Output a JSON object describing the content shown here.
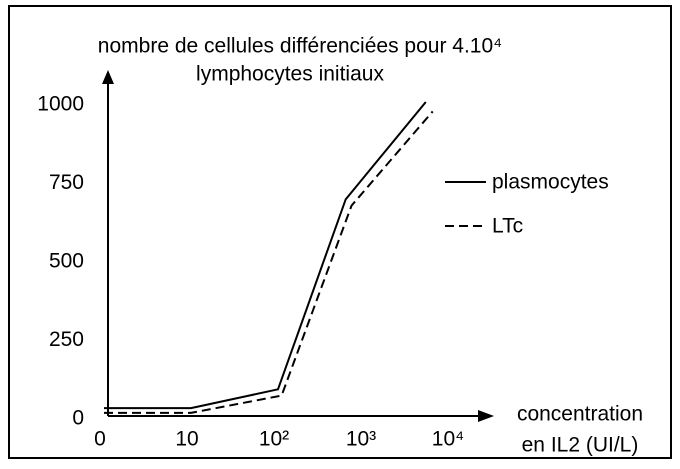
{
  "chart_data": {
    "type": "line",
    "title": [
      "nombre de cellules différenciées  pour  4.10⁴",
      "lymphocytes initiaux"
    ],
    "x_label": [
      "concentration",
      "en IL2 (UI/L)"
    ],
    "xscale": "log",
    "xticks": [
      0,
      10,
      {
        "value": 100,
        "label": "10²"
      },
      {
        "value": 1000,
        "label": "10³"
      },
      {
        "value": 10000,
        "label": "10⁴"
      }
    ],
    "ylim": [
      0,
      1000
    ],
    "yticks": [
      0,
      250,
      500,
      750,
      1000
    ],
    "grid": false,
    "legend": "right",
    "series": [
      {
        "name": "plasmocytes",
        "color": "#000000",
        "dash": "solid",
        "x": [
          0,
          10,
          100,
          600,
          5000
        ],
        "values": [
          25,
          25,
          85,
          690,
          1000
        ]
      },
      {
        "name": "LTc",
        "color": "#000000",
        "dash": "dashed",
        "x": [
          0,
          10,
          110,
          700,
          6000
        ],
        "values": [
          10,
          10,
          65,
          670,
          970
        ]
      }
    ]
  }
}
